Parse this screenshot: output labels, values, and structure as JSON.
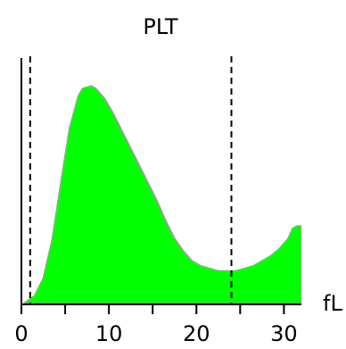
{
  "chart_data": {
    "type": "area",
    "title": "PLT",
    "xlabel": "fL",
    "ylabel": "",
    "xlim": [
      0,
      32
    ],
    "ylim": [
      0,
      100
    ],
    "x_ticks": [
      0,
      10,
      20,
      30
    ],
    "x_minor_ticks": [
      5,
      15,
      25
    ],
    "grid": false,
    "fill_color": "#00ff00",
    "outline_color": "#9e9e9e",
    "marker_color": "#000000",
    "markers": [
      {
        "x": 1
      },
      {
        "x": 24
      }
    ],
    "series": [
      {
        "x": [
          0.3,
          1.5,
          2.5,
          3.5,
          4.5,
          5.5,
          6.5,
          7.0,
          8.0,
          8.5,
          9.5,
          10.5,
          11.5,
          12.5,
          13.5,
          14.5,
          15.5,
          16.5,
          17.5,
          18.5,
          19.5,
          20.5,
          21.5,
          22.5,
          23.5,
          24.5,
          25.5,
          26.5,
          27.5,
          28.5,
          29.5,
          30.5,
          31.0,
          31.5,
          32.0
        ],
        "values": [
          0,
          3,
          10,
          25,
          48,
          70,
          83,
          86,
          87,
          86,
          82,
          76,
          69,
          62,
          55,
          48,
          41,
          33,
          26,
          21,
          17,
          15,
          14,
          13,
          13,
          13,
          14,
          15,
          17,
          19,
          22,
          26,
          30,
          31,
          31
        ]
      }
    ]
  }
}
